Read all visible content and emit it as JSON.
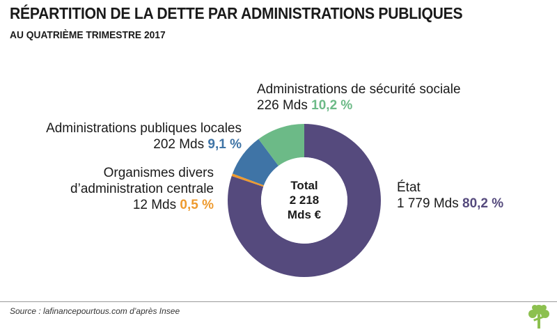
{
  "header": {
    "title": "RÉPARTITION DE LA DETTE PAR ADMINISTRATIONS PUBLIQUES",
    "subtitle": "AU QUATRIÈME TRIMESTRE 2017"
  },
  "chart_data": {
    "type": "pie",
    "variant": "donut",
    "title": "RÉPARTITION DE LA DETTE PAR ADMINISTRATIONS PUBLIQUES",
    "subtitle": "AU QUATRIÈME TRIMESTRE 2017",
    "unit": "Mds €",
    "slices": [
      {
        "id": "etat",
        "name": "État",
        "amount_label": "1 779 Mds",
        "value": 1779,
        "percent": 80.2,
        "percent_label": "80,2 %",
        "color": "#554a7d"
      },
      {
        "id": "odac",
        "name_line1": "Organismes divers",
        "name_line2": "d’administration centrale",
        "amount_label": "12 Mds",
        "value": 12,
        "percent": 0.5,
        "percent_label": "0,5 %",
        "color": "#ee9a2e"
      },
      {
        "id": "apul",
        "name": "Administrations publiques locales",
        "amount_label": "202 Mds",
        "value": 202,
        "percent": 9.1,
        "percent_label": "9,1 %",
        "color": "#3f74a6"
      },
      {
        "id": "asso",
        "name": "Administrations de sécurité sociale",
        "amount_label": "226 Mds",
        "value": 226,
        "percent": 10.2,
        "percent_label": "10,2 %",
        "color": "#6cba87"
      }
    ],
    "center": {
      "line1": "Total",
      "line2": "2 218",
      "line3": "Mds €"
    }
  },
  "footer": {
    "source": "Source : lafinancepourtous.com d’après Insee",
    "logo_color": "#8cc04f"
  }
}
